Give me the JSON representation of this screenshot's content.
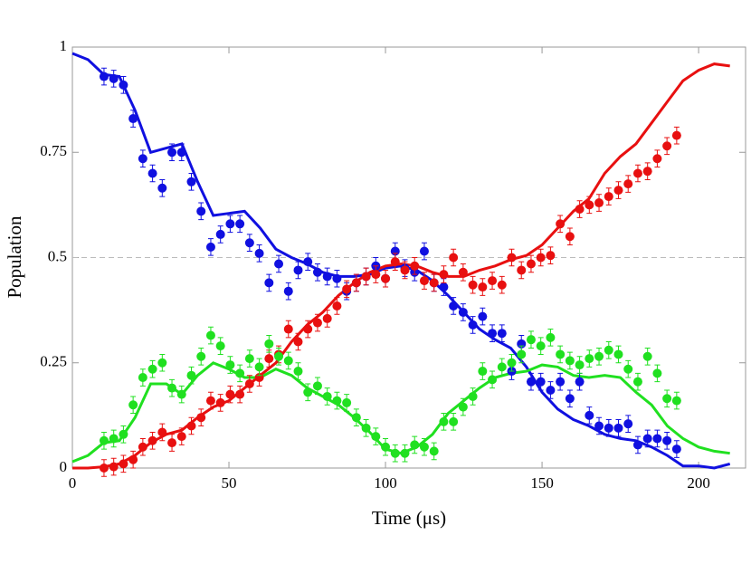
{
  "chart_data": {
    "type": "scatter-errorbar-line",
    "x_label": "Time (μs)",
    "y_label": "Population",
    "xlim": [
      0,
      215
    ],
    "ylim": [
      0,
      1
    ],
    "xticks": [
      0,
      50,
      100,
      150,
      200
    ],
    "yticks": [
      0,
      0.25,
      0.5,
      0.75,
      1
    ],
    "hline": 0.5,
    "x": [
      10.1,
      13.2,
      16.3,
      19.4,
      22.5,
      25.6,
      28.7,
      31.8,
      34.9,
      38,
      41.1,
      44.2,
      47.3,
      50.4,
      53.5,
      56.6,
      59.7,
      62.8,
      65.9,
      69,
      72.1,
      75.2,
      78.3,
      81.4,
      84.5,
      87.6,
      90.7,
      93.8,
      96.9,
      100,
      103.1,
      106.2,
      109.3,
      112.4,
      115.5,
      118.6,
      121.7,
      124.8,
      127.9,
      131,
      134.1,
      137.2,
      140.3,
      143.4,
      146.5,
      149.6,
      152.7,
      155.8,
      158.9,
      162,
      165.1,
      168.2,
      171.3,
      174.4,
      177.5,
      180.6,
      183.7,
      186.8,
      189.9,
      193
    ],
    "series": [
      {
        "color": "#1010e0",
        "error": 0.02,
        "values": [
          0.93,
          0.925,
          0.91,
          0.83,
          0.735,
          0.7,
          0.665,
          0.75,
          0.75,
          0.68,
          0.61,
          0.525,
          0.555,
          0.58,
          0.58,
          0.535,
          0.51,
          0.44,
          0.485,
          0.42,
          0.47,
          0.49,
          0.465,
          0.455,
          0.45,
          0.42,
          0.44,
          0.455,
          0.48,
          0.45,
          0.515,
          0.475,
          0.465,
          0.515,
          0.44,
          0.43,
          0.385,
          0.37,
          0.34,
          0.36,
          0.32,
          0.32,
          0.23,
          0.295,
          0.205,
          0.205,
          0.185,
          0.205,
          0.165,
          0.205,
          0.125,
          0.1,
          0.095,
          0.095,
          0.105,
          0.055,
          0.07,
          0.07,
          0.065,
          0.045
        ]
      },
      {
        "color": "#e81010",
        "error": 0.02,
        "values": [
          0,
          0.003,
          0.01,
          0.02,
          0.05,
          0.065,
          0.085,
          0.06,
          0.075,
          0.1,
          0.12,
          0.16,
          0.155,
          0.175,
          0.175,
          0.2,
          0.215,
          0.26,
          0.27,
          0.33,
          0.3,
          0.33,
          0.345,
          0.355,
          0.385,
          0.425,
          0.44,
          0.455,
          0.46,
          0.45,
          0.49,
          0.47,
          0.48,
          0.445,
          0.44,
          0.46,
          0.5,
          0.465,
          0.435,
          0.43,
          0.445,
          0.435,
          0.5,
          0.47,
          0.485,
          0.5,
          0.505,
          0.58,
          0.55,
          0.615,
          0.625,
          0.63,
          0.645,
          0.66,
          0.675,
          0.7,
          0.705,
          0.735,
          0.765,
          0.79
        ]
      },
      {
        "color": "#20e020",
        "error": 0.02,
        "values": [
          0.065,
          0.07,
          0.08,
          0.15,
          0.215,
          0.235,
          0.25,
          0.19,
          0.175,
          0.22,
          0.265,
          0.315,
          0.29,
          0.245,
          0.225,
          0.26,
          0.24,
          0.295,
          0.265,
          0.255,
          0.23,
          0.18,
          0.195,
          0.17,
          0.16,
          0.155,
          0.12,
          0.095,
          0.075,
          0.05,
          0.035,
          0.035,
          0.055,
          0.05,
          0.04,
          0.11,
          0.11,
          0.145,
          0.17,
          0.23,
          0.21,
          0.24,
          0.25,
          0.27,
          0.305,
          0.29,
          0.31,
          0.27,
          0.255,
          0.245,
          0.26,
          0.265,
          0.28,
          0.27,
          0.235,
          0.205,
          0.265,
          0.225,
          0.165,
          0.16
        ]
      }
    ],
    "lines": [
      {
        "color": "#1010e0",
        "x": [
          0,
          5,
          10,
          15,
          20,
          25,
          30,
          35,
          40,
          45,
          50,
          55,
          60,
          65,
          70,
          75,
          80,
          85,
          90,
          95,
          100,
          105,
          110,
          115,
          120,
          125,
          130,
          135,
          140,
          145,
          150,
          155,
          160,
          165,
          170,
          175,
          180,
          185,
          190,
          195,
          200,
          205,
          210
        ],
        "values": [
          0.985,
          0.97,
          0.935,
          0.93,
          0.85,
          0.75,
          0.76,
          0.77,
          0.68,
          0.6,
          0.605,
          0.61,
          0.57,
          0.52,
          0.5,
          0.485,
          0.465,
          0.455,
          0.455,
          0.46,
          0.475,
          0.48,
          0.47,
          0.445,
          0.41,
          0.37,
          0.33,
          0.305,
          0.285,
          0.24,
          0.18,
          0.14,
          0.115,
          0.1,
          0.08,
          0.07,
          0.065,
          0.05,
          0.03,
          0.005,
          0.005,
          0,
          0.01
        ]
      },
      {
        "color": "#e81010",
        "x": [
          0,
          5,
          10,
          15,
          20,
          25,
          30,
          35,
          40,
          45,
          50,
          55,
          60,
          65,
          70,
          75,
          80,
          85,
          90,
          95,
          100,
          105,
          110,
          115,
          120,
          125,
          130,
          135,
          140,
          145,
          150,
          155,
          160,
          165,
          170,
          175,
          180,
          185,
          190,
          195,
          200,
          205,
          210
        ],
        "values": [
          0,
          0,
          0.003,
          0.01,
          0.03,
          0.06,
          0.08,
          0.09,
          0.12,
          0.145,
          0.16,
          0.19,
          0.22,
          0.25,
          0.3,
          0.34,
          0.37,
          0.41,
          0.44,
          0.465,
          0.48,
          0.485,
          0.48,
          0.465,
          0.455,
          0.455,
          0.47,
          0.48,
          0.495,
          0.505,
          0.53,
          0.57,
          0.61,
          0.64,
          0.7,
          0.74,
          0.77,
          0.82,
          0.87,
          0.92,
          0.945,
          0.96,
          0.955
        ]
      },
      {
        "color": "#20e020",
        "x": [
          0,
          5,
          10,
          15,
          20,
          25,
          30,
          35,
          40,
          45,
          50,
          55,
          60,
          65,
          70,
          75,
          80,
          85,
          90,
          95,
          100,
          105,
          110,
          115,
          120,
          125,
          130,
          135,
          140,
          145,
          150,
          155,
          160,
          165,
          170,
          175,
          180,
          185,
          190,
          195,
          200,
          205,
          210
        ],
        "values": [
          0.015,
          0.03,
          0.06,
          0.065,
          0.12,
          0.2,
          0.2,
          0.175,
          0.22,
          0.25,
          0.235,
          0.215,
          0.215,
          0.235,
          0.22,
          0.19,
          0.17,
          0.15,
          0.12,
          0.085,
          0.045,
          0.035,
          0.05,
          0.08,
          0.13,
          0.16,
          0.19,
          0.215,
          0.225,
          0.23,
          0.245,
          0.24,
          0.22,
          0.215,
          0.22,
          0.215,
          0.18,
          0.15,
          0.1,
          0.07,
          0.05,
          0.04,
          0.035
        ]
      }
    ]
  }
}
